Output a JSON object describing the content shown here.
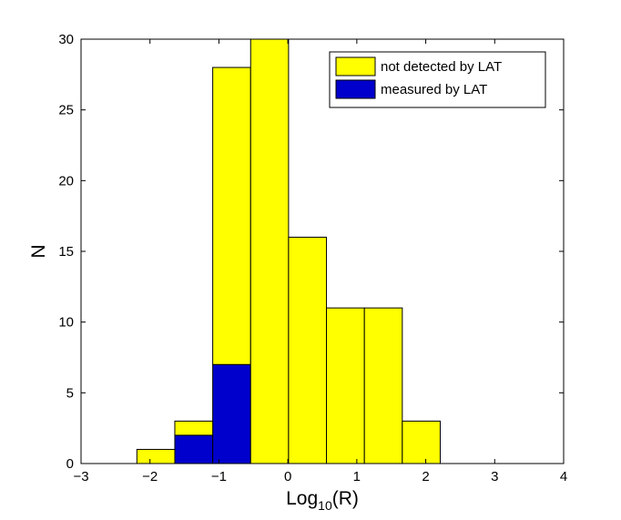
{
  "chart_data": {
    "type": "bar",
    "subtype": "stacked-histogram",
    "xlabel_base": "Log",
    "xlabel_sub": "10",
    "xlabel_tail": "(R)",
    "ylabel": "N",
    "xlim": [
      -3,
      4
    ],
    "ylim": [
      0,
      30
    ],
    "xticks": [
      "−3",
      "−2",
      "−1",
      "0",
      "1",
      "2",
      "3",
      "4"
    ],
    "xtick_values": [
      -3,
      -2,
      -1,
      0,
      1,
      2,
      3,
      4
    ],
    "yticks": [
      "0",
      "5",
      "10",
      "15",
      "20",
      "25",
      "30"
    ],
    "ytick_values": [
      0,
      5,
      10,
      15,
      20,
      25,
      30
    ],
    "grid": false,
    "legend_position": "top-right",
    "bin_edges": [
      -2.19,
      -1.64,
      -1.09,
      -0.54,
      0.01,
      0.56,
      1.11,
      1.66,
      2.21
    ],
    "series": [
      {
        "name": "measured by LAT",
        "color": "#0000cc",
        "values": [
          0,
          2,
          7,
          0,
          0,
          0,
          0,
          0
        ]
      },
      {
        "name": "not detected by LAT",
        "color": "#ffff00",
        "values": [
          1,
          1,
          21,
          30,
          16,
          11,
          11,
          3
        ]
      }
    ],
    "totals": [
      1,
      3,
      28,
      30,
      16,
      11,
      11,
      3
    ]
  }
}
